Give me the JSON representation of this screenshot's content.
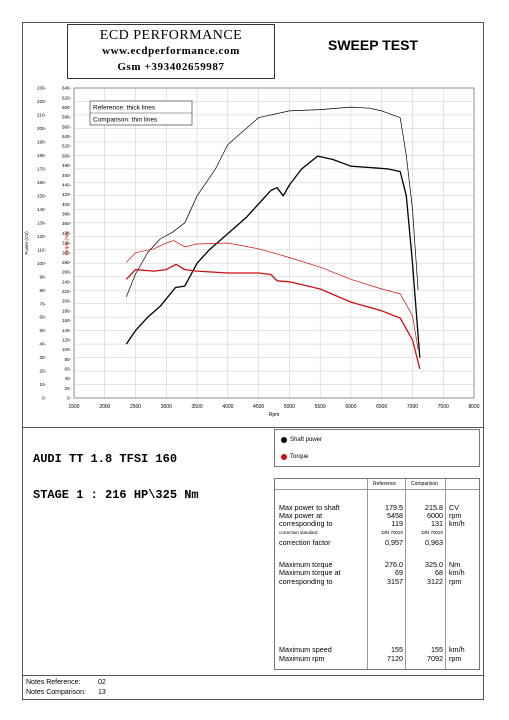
{
  "header": {
    "company": "ECD PERFORMANCE",
    "website": "www.ecdperformance.com",
    "gsm": "Gsm +393402659987",
    "test_title": "SWEEP TEST"
  },
  "chart_data": {
    "type": "line",
    "xlabel": "Rpm",
    "ylabel_left": "Power (CV)",
    "ylabel_right": "Torque (Nm)",
    "xlim": [
      1500,
      8000
    ],
    "x_ticks": [
      1500,
      2000,
      2500,
      3000,
      3500,
      4000,
      4500,
      5000,
      5500,
      6000,
      6500,
      7000,
      7500,
      8000
    ],
    "ylim_power": [
      0,
      230
    ],
    "power_ticks": [
      0,
      10,
      20,
      30,
      40,
      50,
      60,
      70,
      80,
      90,
      100,
      110,
      120,
      130,
      140,
      150,
      160,
      170,
      180,
      190,
      200,
      210,
      220,
      230
    ],
    "ylim_torque": [
      0,
      640
    ],
    "torque_ticks": [
      0,
      20,
      40,
      60,
      80,
      100,
      120,
      140,
      160,
      180,
      200,
      220,
      240,
      260,
      280,
      300,
      320,
      340,
      360,
      380,
      400,
      420,
      440,
      460,
      480,
      500,
      520,
      540,
      560,
      580,
      600,
      620,
      640
    ],
    "grid": true,
    "annotations": [
      "Reference: thick lines",
      "Comparison: thin lines"
    ],
    "series": [
      {
        "name": "Shaft power",
        "line": "thick",
        "color": "#000000",
        "axis": "power",
        "x": [
          2350,
          2500,
          2700,
          2900,
          3150,
          3300,
          3500,
          3700,
          3900,
          4100,
          4300,
          4500,
          4700,
          4800,
          4900,
          5000,
          5200,
          5458,
          5700,
          6000,
          6300,
          6600,
          6800,
          6900,
          7000,
          7120
        ],
        "y": [
          40,
          50,
          60,
          68,
          82,
          83,
          100,
          110,
          118,
          126,
          134,
          144,
          154,
          156,
          150,
          158,
          170,
          179.5,
          177,
          172,
          171,
          170,
          168,
          150,
          100,
          30
        ]
      },
      {
        "name": "Torque",
        "line": "thick",
        "color": "#cc1111",
        "axis": "torque",
        "x": [
          2350,
          2500,
          2800,
          3000,
          3157,
          3300,
          3500,
          4000,
          4500,
          4700,
          4800,
          5000,
          5500,
          6000,
          6500,
          6800,
          7000,
          7120
        ],
        "y": [
          245,
          265,
          262,
          265,
          276,
          265,
          262,
          258,
          258,
          255,
          242,
          240,
          225,
          198,
          180,
          165,
          120,
          60
        ]
      },
      {
        "name": "Shaft power",
        "line": "thin",
        "color": "#000000",
        "axis": "power",
        "x": [
          2350,
          2500,
          2700,
          2900,
          3100,
          3300,
          3500,
          3800,
          4000,
          4300,
          4500,
          5000,
          5500,
          6000,
          6300,
          6500,
          6800,
          6900,
          7000,
          7092
        ],
        "y": [
          75,
          92,
          108,
          118,
          123,
          130,
          150,
          170,
          188,
          200,
          208,
          213,
          214,
          215.8,
          215,
          213,
          208,
          180,
          140,
          80
        ]
      },
      {
        "name": "Torque",
        "line": "thin",
        "color": "#cc1111",
        "axis": "torque",
        "x": [
          2350,
          2500,
          2800,
          3000,
          3122,
          3300,
          3500,
          4000,
          4500,
          5000,
          5500,
          6000,
          6500,
          6800,
          7000,
          7092
        ],
        "y": [
          280,
          300,
          308,
          320,
          325,
          312,
          318,
          320,
          308,
          290,
          270,
          245,
          225,
          215,
          170,
          100
        ]
      }
    ]
  },
  "model": "AUDI TT 1.8 TFSI 160",
  "stage": "STAGE 1 : 216 HP\\325 Nm",
  "legend": [
    {
      "label": "Shaft power",
      "color": "#000000"
    },
    {
      "label": "Torque",
      "color": "#cc1111"
    }
  ],
  "table": {
    "header_ref": "Reference",
    "header_cmp": "Comparison",
    "rows": [
      {
        "label": "Max power to shaft",
        "ref": "179.5",
        "cmp": "215.8",
        "unit": "CV"
      },
      {
        "label": "Max power at",
        "ref": "5458",
        "cmp": "6000",
        "unit": "rpm"
      },
      {
        "label": "corresponding to",
        "ref": "119",
        "cmp": "131",
        "unit": "km/h"
      },
      {
        "label": "correction standard",
        "ref": "DIN 70020",
        "cmp": "DIN 70020",
        "unit": "",
        "small": true
      },
      {
        "label": "correction factor",
        "ref": "0,957",
        "cmp": "0,963",
        "unit": ""
      },
      {
        "label": "Maximum torque",
        "ref": "276.0",
        "cmp": "325.0",
        "unit": "Nm"
      },
      {
        "label": "Maximum torque at",
        "ref": "69",
        "cmp": "68",
        "unit": "km/h"
      },
      {
        "label": "corresponding to",
        "ref": "3157",
        "cmp": "3122",
        "unit": "rpm"
      },
      {
        "label": "Maximum speed",
        "ref": "155",
        "cmp": "155",
        "unit": "km/h"
      },
      {
        "label": "Maximum rpm",
        "ref": "7120",
        "cmp": "7092",
        "unit": "rpm"
      }
    ]
  },
  "notes": {
    "ref_label": "Notes Reference:",
    "ref_value": "02",
    "cmp_label": "Notes Comparison:",
    "cmp_value": "13"
  }
}
